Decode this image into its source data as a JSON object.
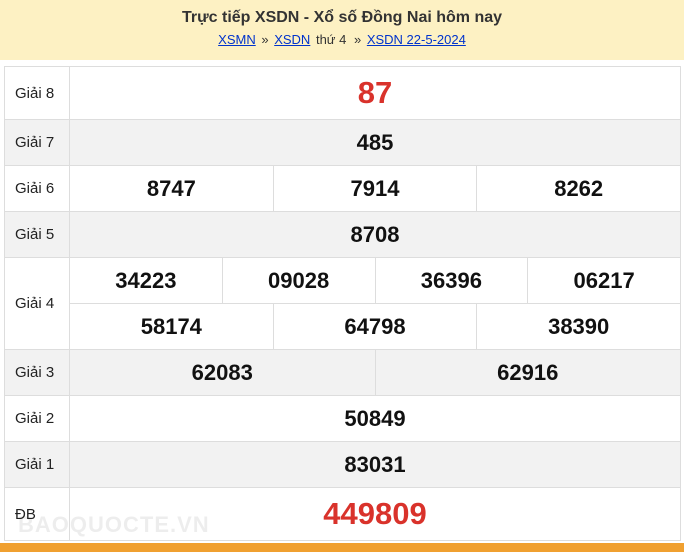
{
  "header": {
    "title": "Trực tiếp XSDN - Xổ số Đồng Nai hôm nay",
    "breadcrumb": [
      {
        "text": "XSMN",
        "link": true
      },
      {
        "text": "»"
      },
      {
        "text": "XSDN",
        "link": true
      },
      {
        "text": "thứ 4"
      },
      {
        "text": "»"
      },
      {
        "text": "XSDN 22-5-2024",
        "link": true
      }
    ]
  },
  "table": {
    "rows": [
      {
        "label": "Giải 8",
        "lines": [
          [
            "87"
          ]
        ],
        "highlight": true
      },
      {
        "label": "Giải 7",
        "lines": [
          [
            "485"
          ]
        ]
      },
      {
        "label": "Giải 6",
        "lines": [
          [
            "8747",
            "7914",
            "8262"
          ]
        ]
      },
      {
        "label": "Giải 5",
        "lines": [
          [
            "8708"
          ]
        ]
      },
      {
        "label": "Giải 4",
        "lines": [
          [
            "34223",
            "09028",
            "36396",
            "06217"
          ],
          [
            "58174",
            "64798",
            "38390"
          ]
        ]
      },
      {
        "label": "Giải 3",
        "lines": [
          [
            "62083",
            "62916"
          ]
        ]
      },
      {
        "label": "Giải 2",
        "lines": [
          [
            "50849"
          ]
        ]
      },
      {
        "label": "Giải 1",
        "lines": [
          [
            "83031"
          ]
        ]
      },
      {
        "label": "ĐB",
        "lines": [
          [
            "449809"
          ]
        ],
        "highlight": true
      }
    ]
  },
  "watermark": "BAOQUOCTE.VN"
}
